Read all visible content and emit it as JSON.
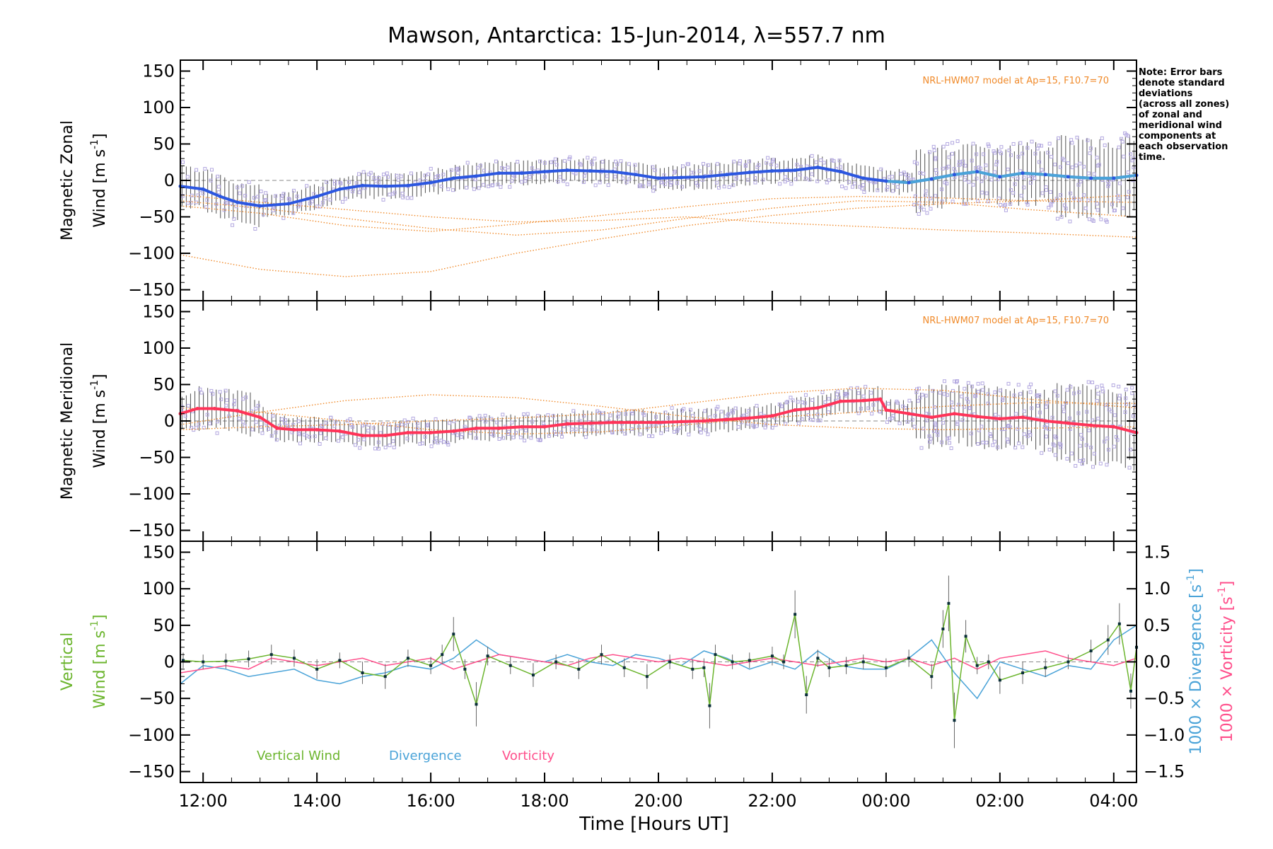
{
  "chart_data": {
    "title": "Mawson, Antarctica: 15-Jun-2014, λ=557.7 nm",
    "note": [
      "Note: Error bars",
      "denote standard",
      "deviations",
      "(across all zones)",
      "of zonal and",
      "meridional wind",
      "components at",
      "each observation",
      "time."
    ],
    "x_axis": {
      "label": "Time [Hours UT]",
      "range_hours": [
        11.6,
        28.4
      ],
      "ticks": [
        12,
        14,
        16,
        18,
        20,
        22,
        24,
        26,
        28
      ],
      "tick_labels": [
        "12:00",
        "14:00",
        "16:00",
        "18:00",
        "20:00",
        "22:00",
        "00:00",
        "02:00",
        "04:00"
      ]
    },
    "colors": {
      "zonal": "#2b56e0",
      "zonal_late": "#4aa3d8",
      "meridional": "#ff3358",
      "vertical": "#6cb52e",
      "divergence": "#4aa3d8",
      "vorticity": "#ff4f8b",
      "model": "#f08a2a",
      "scatter": "#b3a8e0",
      "errorbar": "#2a2a2a"
    },
    "panels": [
      {
        "id": "zonal",
        "type": "line",
        "ylabel_line1": "Magnetic Zonal",
        "ylabel_line2_prefix": "Wind [m s",
        "ylabel_line2_exp": "-1",
        "ylabel_line2_suffix": "]",
        "ylim": [
          -165,
          165
        ],
        "yticks": [
          150,
          100,
          50,
          0,
          -50,
          -100,
          -150
        ],
        "ytick_labels": [
          "150",
          "100",
          "50",
          "0",
          "−50",
          "−100",
          "−150"
        ],
        "model_label": "NRL-HWM07 model at Ap=15, F10.7=70",
        "series": [
          {
            "name": "Magnetic Zonal Wind",
            "x": [
              11.6,
              12.0,
              12.3,
              12.6,
              13.0,
              13.5,
              14.0,
              14.4,
              14.8,
              15.2,
              15.6,
              16.0,
              16.4,
              16.8,
              17.2,
              17.6,
              18.0,
              18.4,
              18.8,
              19.2,
              19.6,
              20.0,
              20.4,
              20.8,
              21.2,
              21.6,
              22.0,
              22.4,
              22.8,
              23.2,
              23.6,
              24.0,
              24.4,
              24.8,
              25.2,
              25.6,
              26.0,
              26.4,
              26.8,
              27.2,
              27.6,
              28.0,
              28.4
            ],
            "y": [
              -8,
              -12,
              -22,
              -30,
              -35,
              -32,
              -22,
              -12,
              -7,
              -8,
              -7,
              -3,
              3,
              6,
              10,
              10,
              12,
              14,
              13,
              12,
              8,
              3,
              4,
              5,
              8,
              11,
              13,
              14,
              18,
              12,
              3,
              -1,
              -3,
              2,
              8,
              12,
              5,
              10,
              8,
              5,
              3,
              3,
              7
            ]
          }
        ],
        "model_curves": [
          {
            "x": [
              11.6,
              13.0,
              14.5,
              16.0,
              17.5,
              19.0,
              20.5,
              22.0,
              23.5,
              25.0,
              26.5,
              28.4
            ],
            "y": [
              -102,
              -122,
              -132,
              -125,
              -100,
              -80,
              -62,
              -48,
              -38,
              -32,
              -28,
              -20
            ]
          },
          {
            "x": [
              11.6,
              13.0,
              14.5,
              16.0,
              17.5,
              19.0,
              20.5,
              22.0,
              23.5,
              25.0,
              26.5,
              28.4
            ],
            "y": [
              -35,
              -45,
              -62,
              -70,
              -60,
              -48,
              -36,
              -25,
              -22,
              -24,
              -28,
              -30
            ]
          },
          {
            "x": [
              11.6,
              13.0,
              14.5,
              16.0,
              17.5,
              19.0,
              20.5,
              22.0,
              23.5,
              25.0,
              26.5,
              28.4
            ],
            "y": [
              -28,
              -38,
              -52,
              -66,
              -75,
              -68,
              -52,
              -38,
              -28,
              -30,
              -40,
              -50
            ]
          },
          {
            "x": [
              11.6,
              13.0,
              14.5,
              16.0,
              17.5,
              19.0,
              20.5,
              22.0,
              23.5,
              25.0,
              26.5,
              28.4
            ],
            "y": [
              -20,
              -30,
              -40,
              -50,
              -57,
              -55,
              -50,
              -58,
              -63,
              -68,
              -72,
              -78
            ]
          }
        ]
      },
      {
        "id": "meridional",
        "type": "line",
        "ylabel_line1": "Magnetic Meridional",
        "ylabel_line2_prefix": "Wind [m s",
        "ylabel_line2_exp": "-1",
        "ylabel_line2_suffix": "]",
        "ylim": [
          -165,
          165
        ],
        "yticks": [
          150,
          100,
          50,
          0,
          -50,
          -100,
          -150
        ],
        "ytick_labels": [
          "150",
          "100",
          "50",
          "0",
          "−50",
          "−100",
          "−150"
        ],
        "model_label": "NRL-HWM07 model at Ap=15, F10.7=70",
        "series": [
          {
            "name": "Magnetic Meridional Wind",
            "x": [
              11.6,
              11.9,
              12.2,
              12.6,
              13.0,
              13.3,
              13.6,
              14.0,
              14.4,
              14.8,
              15.2,
              15.6,
              16.0,
              16.4,
              16.8,
              17.2,
              17.6,
              18.0,
              18.4,
              18.8,
              19.2,
              19.6,
              20.0,
              20.4,
              20.8,
              21.2,
              21.6,
              22.0,
              22.4,
              22.8,
              23.2,
              23.6,
              23.9,
              24.0,
              24.4,
              24.8,
              25.2,
              25.6,
              26.0,
              26.4,
              26.8,
              27.2,
              27.6,
              28.0,
              28.4
            ],
            "y": [
              10,
              17,
              17,
              14,
              5,
              -10,
              -12,
              -12,
              -14,
              -20,
              -20,
              -16,
              -16,
              -14,
              -10,
              -10,
              -8,
              -8,
              -4,
              -3,
              -2,
              -2,
              -2,
              -1,
              0,
              2,
              4,
              7,
              15,
              18,
              27,
              28,
              30,
              15,
              10,
              5,
              10,
              6,
              3,
              5,
              0,
              -3,
              -6,
              -8,
              -16
            ]
          }
        ],
        "model_curves": [
          {
            "x": [
              11.6,
              13.0,
              14.5,
              16.0,
              17.5,
              19.0,
              20.5,
              22.0,
              23.5,
              25.0,
              26.5,
              28.4
            ],
            "y": [
              -5,
              12,
              28,
              36,
              32,
              20,
              6,
              -5,
              -10,
              -12,
              -10,
              -8
            ]
          },
          {
            "x": [
              11.6,
              13.0,
              14.5,
              16.0,
              17.5,
              19.0,
              20.5,
              22.0,
              23.5,
              25.0,
              26.5,
              28.4
            ],
            "y": [
              -12,
              -8,
              -5,
              0,
              4,
              10,
              24,
              38,
              45,
              42,
              30,
              18
            ]
          },
          {
            "x": [
              11.6,
              13.0,
              14.5,
              16.0,
              17.5,
              19.0,
              20.5,
              22.0,
              23.5,
              25.0,
              26.5,
              28.4
            ],
            "y": [
              18,
              12,
              0,
              -12,
              -18,
              -15,
              -5,
              5,
              12,
              20,
              25,
              24
            ]
          }
        ]
      },
      {
        "id": "vertical",
        "type": "line",
        "ylabel_line1": "Vertical",
        "ylabel_line2_prefix": "Wind [m s",
        "ylabel_line2_exp": "-1",
        "ylabel_line2_suffix": "]",
        "ylim": [
          -165,
          165
        ],
        "yticks": [
          150,
          100,
          50,
          0,
          -50,
          -100,
          -150
        ],
        "ytick_labels": [
          "150",
          "100",
          "50",
          "0",
          "−50",
          "−100",
          "−150"
        ],
        "right_axis": {
          "ylim": [
            -1.65,
            1.65
          ],
          "yticks": [
            1.5,
            1.0,
            0.5,
            0.0,
            -0.5,
            -1.0,
            -1.5
          ],
          "ytick_labels": [
            "1.5",
            "1.0",
            "0.5",
            "0.0",
            "−0.5",
            "−1.0",
            "−1.5"
          ],
          "label_divergence_prefix": "1000 × Divergence [s",
          "label_vorticity_prefix": "1000 × Vorticity [s",
          "label_exp": "-1",
          "label_suffix": "]"
        },
        "legend": [
          "Vertical Wind",
          "Divergence",
          "Vorticity"
        ],
        "series": [
          {
            "name": "Vertical Wind",
            "x": [
              11.65,
              12.0,
              12.4,
              12.8,
              13.2,
              13.6,
              14.0,
              14.4,
              14.8,
              15.2,
              15.6,
              16.0,
              16.2,
              16.4,
              16.6,
              16.8,
              17.0,
              17.4,
              17.8,
              18.2,
              18.6,
              19.0,
              19.4,
              19.8,
              20.2,
              20.6,
              20.8,
              20.9,
              21.0,
              21.3,
              21.6,
              22.0,
              22.2,
              22.4,
              22.6,
              22.8,
              23.0,
              23.3,
              23.6,
              24.0,
              24.4,
              24.8,
              25.0,
              25.1,
              25.2,
              25.4,
              25.6,
              25.8,
              26.0,
              26.4,
              26.8,
              27.2,
              27.6,
              27.9,
              28.1,
              28.3,
              28.4
            ],
            "y": [
              2,
              0,
              1,
              4,
              10,
              5,
              -10,
              2,
              -15,
              -20,
              5,
              -5,
              10,
              38,
              -10,
              -58,
              8,
              -5,
              -18,
              0,
              -10,
              10,
              -8,
              -20,
              0,
              -10,
              -8,
              -60,
              10,
              0,
              2,
              8,
              0,
              65,
              -45,
              5,
              -8,
              -5,
              0,
              -8,
              5,
              -20,
              45,
              80,
              -80,
              35,
              -5,
              0,
              -25,
              -15,
              -8,
              0,
              15,
              30,
              52,
              -40,
              20
            ]
          },
          {
            "name": "Divergence",
            "axis": "right",
            "x": [
              11.6,
              12.0,
              12.4,
              12.8,
              13.2,
              13.6,
              14.0,
              14.4,
              14.8,
              15.2,
              15.6,
              16.0,
              16.4,
              16.8,
              17.2,
              17.6,
              18.0,
              18.4,
              18.8,
              19.2,
              19.6,
              20.0,
              20.4,
              20.8,
              21.2,
              21.6,
              22.0,
              22.4,
              22.8,
              23.2,
              23.6,
              24.0,
              24.4,
              24.8,
              25.2,
              25.6,
              26.0,
              26.4,
              26.8,
              27.2,
              27.6,
              28.0,
              28.4
            ],
            "y": [
              -0.3,
              -0.05,
              -0.1,
              -0.2,
              -0.15,
              -0.1,
              -0.25,
              -0.3,
              -0.2,
              -0.15,
              -0.05,
              -0.1,
              0.05,
              0.3,
              0.1,
              0.05,
              0.0,
              0.1,
              0.0,
              -0.05,
              0.1,
              0.05,
              -0.05,
              0.15,
              0.05,
              -0.1,
              0.0,
              -0.1,
              0.15,
              -0.05,
              -0.1,
              -0.1,
              0.05,
              0.3,
              -0.15,
              -0.5,
              0.0,
              -0.1,
              -0.2,
              -0.05,
              -0.1,
              0.3,
              0.5
            ]
          },
          {
            "name": "Vorticity",
            "axis": "right",
            "x": [
              11.6,
              12.0,
              12.4,
              12.8,
              13.2,
              13.6,
              14.0,
              14.4,
              14.8,
              15.2,
              15.6,
              16.0,
              16.4,
              16.8,
              17.2,
              17.6,
              18.0,
              18.4,
              18.8,
              19.2,
              19.6,
              20.0,
              20.4,
              20.8,
              21.2,
              21.6,
              22.0,
              22.4,
              22.8,
              23.2,
              23.6,
              24.0,
              24.4,
              24.8,
              25.2,
              25.6,
              26.0,
              26.4,
              26.8,
              27.2,
              27.6,
              28.0,
              28.4
            ],
            "y": [
              -0.15,
              -0.1,
              -0.05,
              -0.1,
              0.05,
              0.0,
              -0.05,
              0.0,
              0.05,
              -0.05,
              0.0,
              0.05,
              -0.1,
              0.0,
              0.1,
              0.05,
              0.0,
              -0.05,
              0.05,
              0.1,
              0.05,
              0.0,
              0.05,
              0.0,
              -0.05,
              0.0,
              0.05,
              0.0,
              -0.05,
              0.0,
              0.05,
              0.0,
              0.05,
              -0.05,
              0.05,
              -0.1,
              0.05,
              0.1,
              0.15,
              0.05,
              0.0,
              -0.05,
              0.05
            ]
          }
        ]
      }
    ]
  }
}
